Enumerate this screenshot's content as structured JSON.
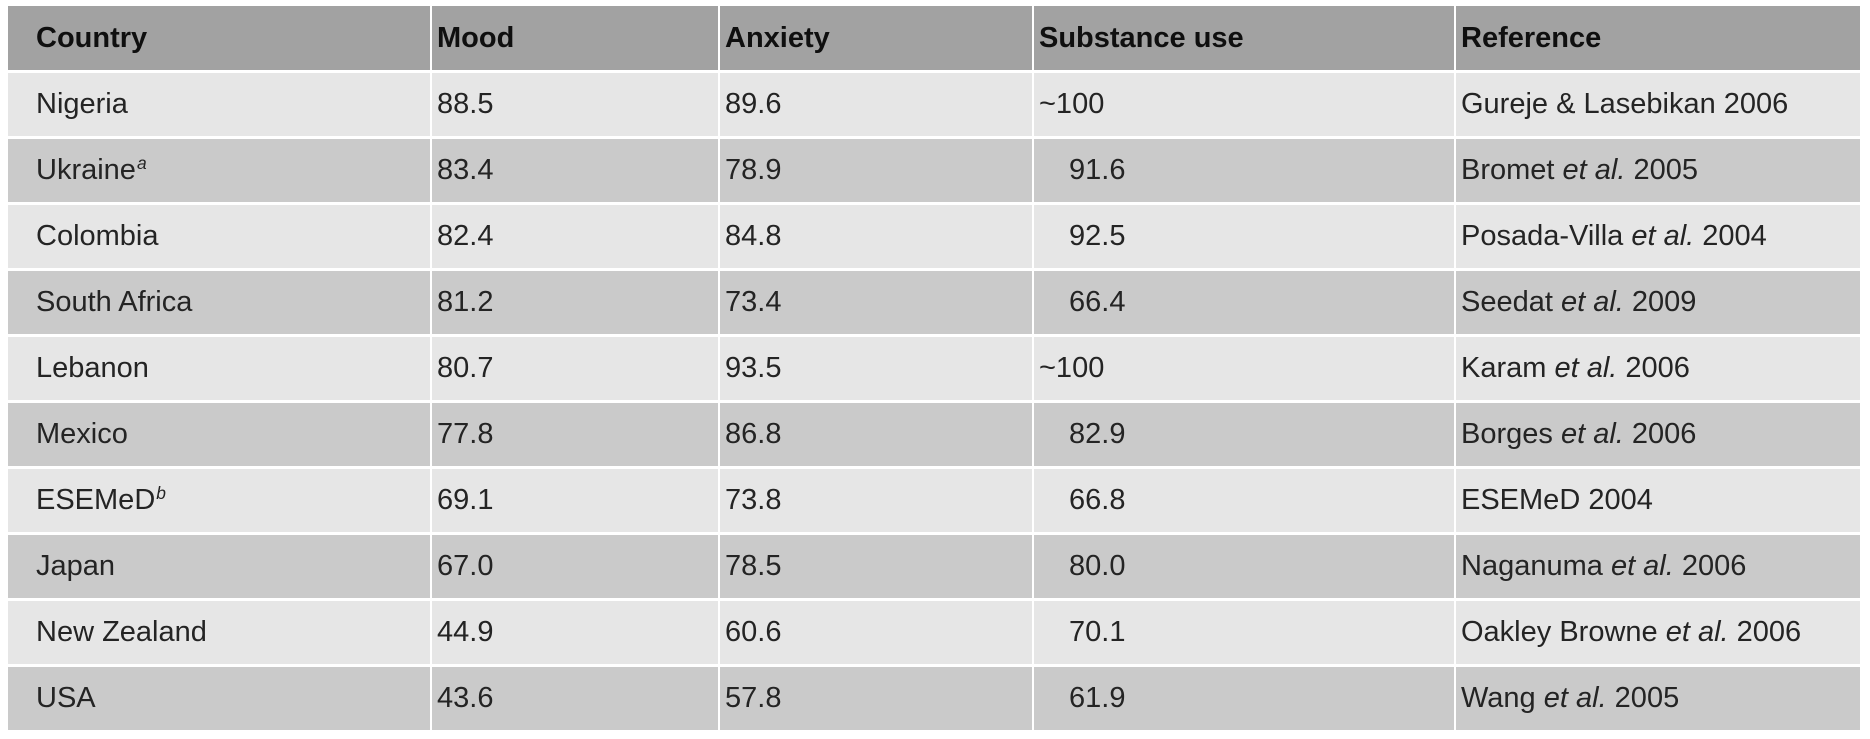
{
  "colors": {
    "header_bg": "#a2a2a2",
    "row_light": "#e6e6e6",
    "row_dark": "#cacaca",
    "text": "#242424",
    "background": "#ffffff"
  },
  "table": {
    "columns": {
      "country": "Country",
      "mood": "Mood",
      "anxiety": "Anxiety",
      "substance": "Substance use",
      "reference": "Reference"
    },
    "rows": [
      {
        "country": "Nigeria",
        "country_sup": "",
        "mood": "88.5",
        "anxiety": "89.6",
        "substance": "~100",
        "substance_indent": false,
        "ref_pre": "Gureje & Lasebikan 2006",
        "ref_italic": "",
        "ref_post": ""
      },
      {
        "country": "Ukraine",
        "country_sup": "a",
        "mood": "83.4",
        "anxiety": "78.9",
        "substance": "91.6",
        "substance_indent": true,
        "ref_pre": "Bromet ",
        "ref_italic": "et al.",
        "ref_post": " 2005"
      },
      {
        "country": "Colombia",
        "country_sup": "",
        "mood": "82.4",
        "anxiety": "84.8",
        "substance": "92.5",
        "substance_indent": true,
        "ref_pre": "Posada-Villa ",
        "ref_italic": "et al.",
        "ref_post": " 2004"
      },
      {
        "country": "South Africa",
        "country_sup": "",
        "mood": "81.2",
        "anxiety": "73.4",
        "substance": "66.4",
        "substance_indent": true,
        "ref_pre": "Seedat ",
        "ref_italic": "et al.",
        "ref_post": " 2009"
      },
      {
        "country": "Lebanon",
        "country_sup": "",
        "mood": "80.7",
        "anxiety": "93.5",
        "substance": "~100",
        "substance_indent": false,
        "ref_pre": "Karam ",
        "ref_italic": "et al.",
        "ref_post": " 2006"
      },
      {
        "country": "Mexico",
        "country_sup": "",
        "mood": "77.8",
        "anxiety": "86.8",
        "substance": "82.9",
        "substance_indent": true,
        "ref_pre": "Borges ",
        "ref_italic": "et al.",
        "ref_post": " 2006"
      },
      {
        "country": "ESEMeD",
        "country_sup": "b",
        "mood": "69.1",
        "anxiety": "73.8",
        "substance": "66.8",
        "substance_indent": true,
        "ref_pre": "ESEMeD 2004",
        "ref_italic": "",
        "ref_post": ""
      },
      {
        "country": "Japan",
        "country_sup": "",
        "mood": "67.0",
        "anxiety": "78.5",
        "substance": "80.0",
        "substance_indent": true,
        "ref_pre": "Naganuma ",
        "ref_italic": "et al.",
        "ref_post": " 2006"
      },
      {
        "country": "New Zealand",
        "country_sup": "",
        "mood": "44.9",
        "anxiety": "60.6",
        "substance": "70.1",
        "substance_indent": true,
        "ref_pre": "Oakley Browne ",
        "ref_italic": "et al.",
        "ref_post": " 2006"
      },
      {
        "country": "USA",
        "country_sup": "",
        "mood": "43.6",
        "anxiety": "57.8",
        "substance": "61.9",
        "substance_indent": true,
        "ref_pre": "Wang ",
        "ref_italic": "et al.",
        "ref_post": " 2005"
      }
    ]
  }
}
